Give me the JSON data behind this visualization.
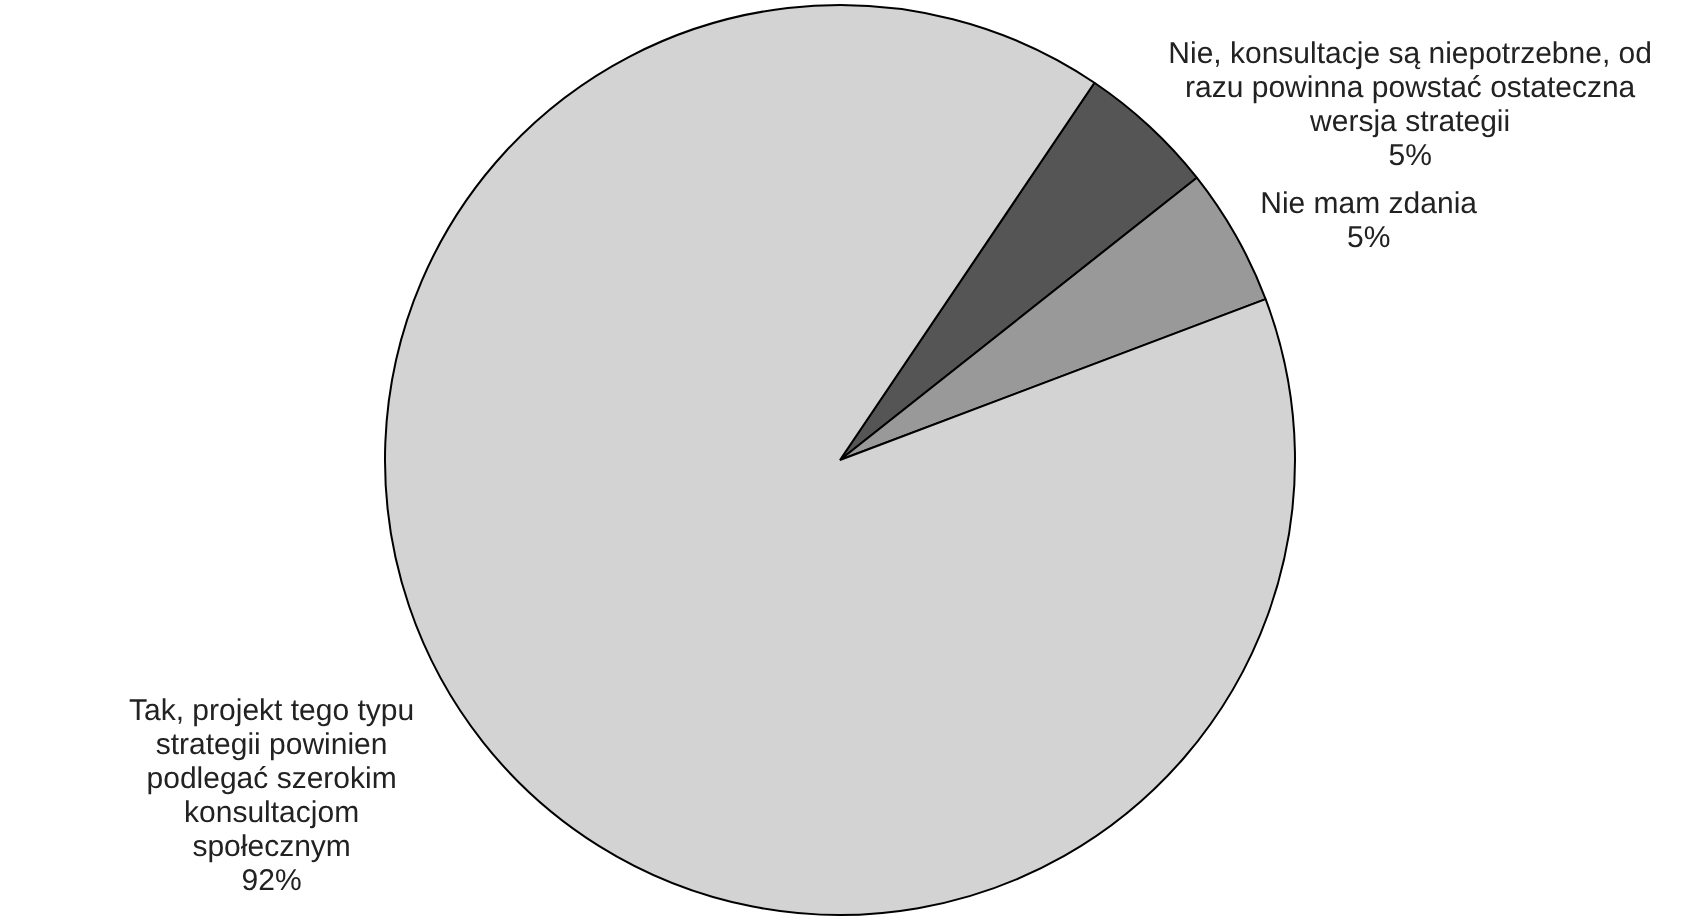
{
  "chart_data": {
    "type": "pie",
    "categories": [
      "Nie, konsultacje są niepotrzebne, od razu powinna powstać ostateczna wersja strategii",
      "Nie mam zdania",
      "Tak, projekt tego typu strategii powinien podlegać szerokim konsultacjom społecznym"
    ],
    "values": [
      5,
      5,
      92
    ],
    "colors": [
      "#555555",
      "#999999",
      "#d3d3d3"
    ],
    "value_labels": [
      "5%",
      "5%",
      "92%"
    ],
    "legend": false
  }
}
